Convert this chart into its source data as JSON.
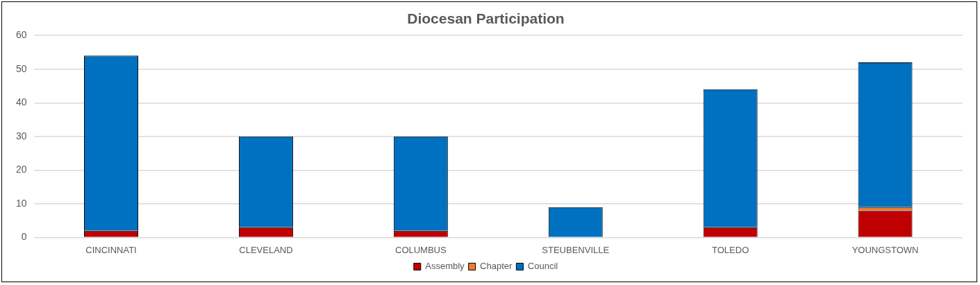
{
  "chart_data": {
    "type": "bar",
    "title": "Diocesan Participation",
    "categories": [
      "CINCINNATI",
      "CLEVELAND",
      "COLUMBUS",
      "STEUBENVILLE",
      "TOLEDO",
      "YOUNGSTOWN"
    ],
    "stacked": true,
    "series": [
      {
        "name": "Assembly",
        "color": "#c00000",
        "values": [
          2,
          3,
          2,
          0,
          3,
          8
        ]
      },
      {
        "name": "Chapter",
        "color": "#ed7d31",
        "values": [
          0,
          0,
          0,
          0,
          0,
          1
        ]
      },
      {
        "name": "Council",
        "color": "#0070c0",
        "values": [
          52,
          27,
          28,
          9,
          41,
          43
        ]
      }
    ],
    "ylim": [
      0,
      60
    ],
    "yticks": [
      0,
      10,
      20,
      30,
      40,
      50,
      60
    ],
    "grid": "y",
    "legend": "bottom"
  }
}
